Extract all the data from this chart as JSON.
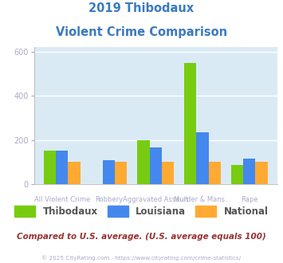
{
  "title_line1": "2019 Thibodaux",
  "title_line2": "Violent Crime Comparison",
  "title_color": "#3a7abf",
  "categories": [
    "All Violent Crime",
    "Robbery",
    "Aggravated Assault",
    "Murder & Mans...",
    "Rape"
  ],
  "row1_labels": [
    "",
    "Robbery",
    "",
    "Murder & Mans...",
    ""
  ],
  "row2_labels": [
    "All Violent Crime",
    "",
    "Aggravated Assault",
    "",
    "Rape"
  ],
  "thibodaux": [
    150,
    0,
    200,
    550,
    85
  ],
  "louisiana": [
    150,
    110,
    165,
    235,
    115
  ],
  "national": [
    100,
    100,
    100,
    100,
    100
  ],
  "color_thibodaux": "#77cc11",
  "color_louisiana": "#4488ee",
  "color_national": "#ffaa33",
  "ylim": [
    0,
    620
  ],
  "yticks": [
    0,
    200,
    400,
    600
  ],
  "plot_bg": "#daeaf5",
  "grid_color": "#ffffff",
  "footer_text": "© 2025 CityRating.com - https://www.cityrating.com/crime-statistics/",
  "note_text": "Compared to U.S. average. (U.S. average equals 100)",
  "note_color": "#993333",
  "footer_color": "#aaaacc",
  "legend_labels": [
    "Thibodaux",
    "Louisiana",
    "National"
  ],
  "legend_text_color": "#555555",
  "xtick_color": "#aaaacc",
  "ytick_color": "#aaaacc"
}
